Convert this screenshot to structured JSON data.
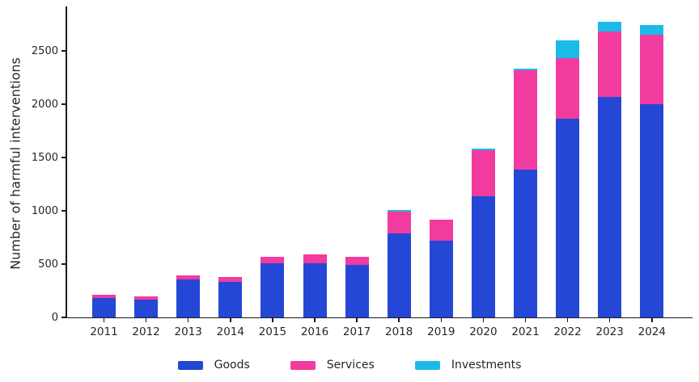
{
  "chart_data": {
    "type": "bar",
    "stacked": true,
    "title": "",
    "xlabel": "",
    "ylabel": "Number of harmful interventions",
    "categories": [
      "2011",
      "2012",
      "2013",
      "2014",
      "2015",
      "2016",
      "2017",
      "2018",
      "2019",
      "2020",
      "2021",
      "2022",
      "2023",
      "2024"
    ],
    "series": [
      {
        "name": "Goods",
        "color": "#2547d6",
        "values": [
          180,
          170,
          355,
          335,
          505,
          510,
          490,
          790,
          720,
          1140,
          1390,
          1860,
          2070,
          2000
        ]
      },
      {
        "name": "Services",
        "color": "#f23b9e",
        "values": [
          30,
          25,
          40,
          45,
          65,
          80,
          75,
          200,
          200,
          430,
          930,
          575,
          615,
          655
        ]
      },
      {
        "name": "Investments",
        "color": "#1bbbe9",
        "values": [
          0,
          0,
          0,
          0,
          0,
          0,
          0,
          20,
          0,
          10,
          15,
          165,
          90,
          85
        ]
      }
    ],
    "yticks": [
      0,
      500,
      1000,
      1500,
      2000,
      2500
    ],
    "ylim": [
      0,
      2900
    ],
    "grid": false,
    "legend_position": "bottom",
    "axis_color": "#1a1a1a",
    "text_color": "#262626",
    "background": "#ffffff"
  }
}
